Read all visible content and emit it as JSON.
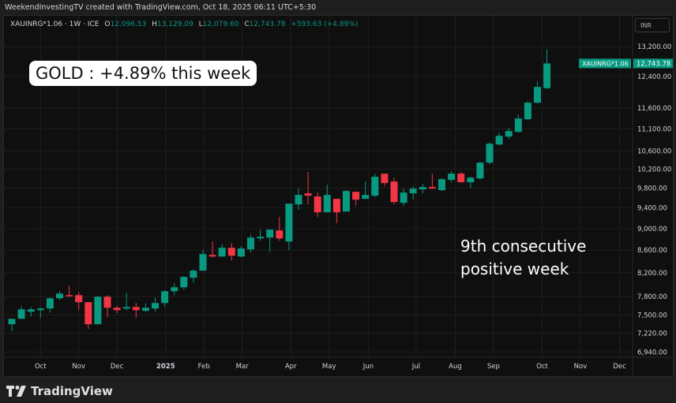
{
  "header": {
    "attribution": "WeekendInvestingTV created with TradingView.com, Oct 18, 2025 06:11 UTC+5:30"
  },
  "legend": {
    "symbol": "XAUINRG*1.06 · 1W · ICE",
    "o_label": "O",
    "o": "12,096.53",
    "h_label": "H",
    "h": "13,129.09",
    "l_label": "L",
    "l": "12,079.60",
    "c_label": "C",
    "c": "12,743.78",
    "change": "+593.63 (+4.89%)"
  },
  "currency": "INR",
  "price_tag": {
    "symbol": "XAUINRG*1.06",
    "value": "12,743.78"
  },
  "annotations": {
    "callout": "GOLD : +4.89% this week",
    "note_line1": "9th consecutive",
    "note_line2": "positive week"
  },
  "footer": {
    "brand": "TradingView"
  },
  "colors": {
    "up": "#089981",
    "down": "#f23645",
    "background": "#0f0f0f",
    "grid": "#1f1f1f"
  },
  "chart_data": {
    "type": "candlestick",
    "title": "XAUINRG*1.06 · 1W · ICE",
    "yscale": "log",
    "ylim": [
      6800,
      13700
    ],
    "y_ticks": [
      13200,
      12400,
      11600,
      11100,
      10600,
      10200,
      9800,
      9400,
      9000,
      8600,
      8200,
      7800,
      7500,
      7220,
      6940
    ],
    "y_tick_labels": [
      "13,200.00",
      "12,400.00",
      "11,600.00",
      "11,100.00",
      "10,600.00",
      "10,200.00",
      "9,800.00",
      "9,400.00",
      "9,000.00",
      "8,600.00",
      "8,200.00",
      "7,800.00",
      "7,500.00",
      "7,220.00",
      "6,940.00"
    ],
    "x_ticks": [
      {
        "label": "Oct",
        "week": 3.0
      },
      {
        "label": "Nov",
        "week": 7.0
      },
      {
        "label": "Dec",
        "week": 11.0
      },
      {
        "label": "2025",
        "week": 16.1,
        "bold": true
      },
      {
        "label": "Feb",
        "week": 20.1
      },
      {
        "label": "Mar",
        "week": 24.1
      },
      {
        "label": "Apr",
        "week": 29.2
      },
      {
        "label": "May",
        "week": 33.2
      },
      {
        "label": "Jun",
        "week": 37.3
      },
      {
        "label": "Jul",
        "week": 42.3
      },
      {
        "label": "Aug",
        "week": 46.4
      },
      {
        "label": "Sep",
        "week": 50.4
      },
      {
        "label": "Oct",
        "week": 55.5
      },
      {
        "label": "Nov",
        "week": 59.5
      },
      {
        "label": "Dec",
        "week": 63.6
      }
    ],
    "candles": [
      [
        7357,
        7442,
        7248,
        7442
      ],
      [
        7442,
        7643,
        7442,
        7592
      ],
      [
        7554,
        7630,
        7479,
        7592
      ],
      [
        7579,
        7618,
        7454,
        7605
      ],
      [
        7605,
        7783,
        7541,
        7771
      ],
      [
        7771,
        7887,
        7745,
        7848
      ],
      [
        7822,
        7980,
        7796,
        7809
      ],
      [
        7822,
        7874,
        7579,
        7707
      ],
      [
        7707,
        7707,
        7284,
        7357
      ],
      [
        7357,
        7809,
        7357,
        7796
      ],
      [
        7796,
        7822,
        7467,
        7618
      ],
      [
        7618,
        7656,
        7530,
        7579
      ],
      [
        7605,
        7861,
        7579,
        7630
      ],
      [
        7630,
        7694,
        7454,
        7579
      ],
      [
        7567,
        7694,
        7554,
        7618
      ],
      [
        7605,
        7783,
        7554,
        7694
      ],
      [
        7694,
        7900,
        7630,
        7887
      ],
      [
        7887,
        8019,
        7822,
        7953
      ],
      [
        7953,
        8142,
        7913,
        8129
      ],
      [
        8115,
        8262,
        8033,
        8236
      ],
      [
        8236,
        8600,
        8236,
        8529
      ],
      [
        8514,
        8758,
        8472,
        8486
      ],
      [
        8486,
        8714,
        8472,
        8643
      ],
      [
        8643,
        8729,
        8416,
        8500
      ],
      [
        8486,
        8672,
        8472,
        8629
      ],
      [
        8614,
        8890,
        8557,
        8831
      ],
      [
        8816,
        8979,
        8772,
        8845
      ],
      [
        8831,
        8979,
        8571,
        8979
      ],
      [
        8964,
        9222,
        8772,
        8816
      ],
      [
        8758,
        9485,
        8600,
        9485
      ],
      [
        9470,
        9790,
        9360,
        9661
      ],
      [
        9693,
        10136,
        9470,
        9645
      ],
      [
        9629,
        9709,
        9222,
        9313
      ],
      [
        9313,
        9871,
        9313,
        9661
      ],
      [
        9581,
        9581,
        9100,
        9313
      ],
      [
        9329,
        9758,
        9329,
        9741
      ],
      [
        9725,
        9725,
        9438,
        9565
      ],
      [
        9581,
        9937,
        9581,
        9661
      ],
      [
        9645,
        10103,
        9613,
        10037
      ],
      [
        10103,
        10103,
        9839,
        9905
      ],
      [
        9937,
        10020,
        9470,
        9517
      ],
      [
        9501,
        9790,
        9438,
        9709
      ],
      [
        9693,
        9839,
        9565,
        9790
      ],
      [
        9774,
        9888,
        9693,
        9822
      ],
      [
        9822,
        10103,
        9790,
        9790
      ],
      [
        9758,
        10004,
        9741,
        9987
      ],
      [
        9971,
        10153,
        9921,
        10103
      ],
      [
        10103,
        10136,
        9921,
        9921
      ],
      [
        9921,
        10037,
        9806,
        10020
      ],
      [
        10004,
        10358,
        9971,
        10341
      ],
      [
        10341,
        10796,
        10307,
        10761
      ],
      [
        10743,
        11015,
        10725,
        10941
      ],
      [
        10923,
        11126,
        10868,
        11052
      ],
      [
        11033,
        11444,
        11015,
        11350
      ],
      [
        11330,
        11771,
        11312,
        11732
      ],
      [
        11732,
        12271,
        11713,
        12129
      ],
      [
        12096.53,
        13129.09,
        12079.6,
        12743.78
      ]
    ],
    "candle_format": [
      "open",
      "high",
      "low",
      "close"
    ],
    "last_price": 12743.78
  }
}
